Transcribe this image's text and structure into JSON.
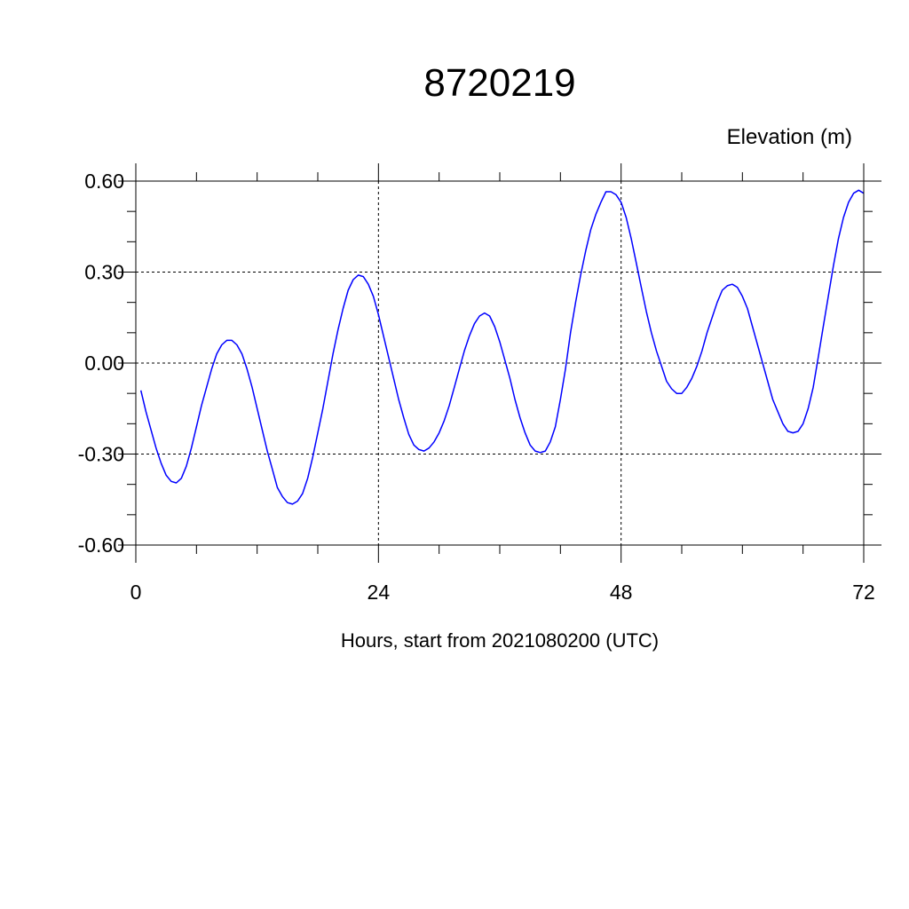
{
  "chart_data": {
    "type": "line",
    "title": "8720219",
    "ylabel": "Elevation (m)",
    "xlabel": "Hours, start from 2021080200 (UTC)",
    "xlim": [
      0,
      72
    ],
    "ylim": [
      -0.6,
      0.6
    ],
    "xticks": [
      0,
      24,
      48,
      72
    ],
    "xtick_labels": [
      "0",
      "24",
      "48",
      "72"
    ],
    "yticks": [
      0.6,
      0.3,
      0.0,
      -0.3,
      -0.6
    ],
    "ytick_labels": [
      "0.60",
      "0.30",
      "0.00",
      "-0.30",
      "-0.60"
    ],
    "grid": true,
    "line_color": "#0000ff",
    "series": [
      {
        "x": [
          0.5,
          1,
          1.5,
          2,
          2.5,
          3,
          3.5,
          4,
          4.5,
          5,
          5.5,
          6,
          6.5,
          7,
          7.5,
          8,
          8.5,
          9,
          9.5,
          10,
          10.5,
          11,
          11.5,
          12,
          12.5,
          13,
          13.5,
          14,
          14.5,
          15,
          15.5,
          16,
          16.5,
          17,
          17.5,
          18,
          18.5,
          19,
          19.5,
          20,
          20.5,
          21,
          21.5,
          22,
          22.5,
          23,
          23.5,
          24,
          24.5,
          25,
          25.5,
          26,
          26.5,
          27,
          27.5,
          28,
          28.5,
          29,
          29.5,
          30,
          30.5,
          31,
          31.5,
          32,
          32.5,
          33,
          33.5,
          34,
          34.5,
          35,
          35.5,
          36,
          36.5,
          37,
          37.5,
          38,
          38.5,
          39,
          39.5,
          40,
          40.5,
          41,
          41.5,
          42,
          42.5,
          43,
          43.5,
          44,
          44.5,
          45,
          45.5,
          46,
          46.5,
          47,
          47.5,
          48,
          48.5,
          49,
          49.5,
          50,
          50.5,
          51,
          51.5,
          52,
          52.5,
          53,
          53.5,
          54,
          54.5,
          55,
          55.5,
          56,
          56.5,
          57,
          57.5,
          58,
          58.5,
          59,
          59.5,
          60,
          60.5,
          61,
          61.5,
          62,
          62.5,
          63,
          63.5,
          64,
          64.5,
          65,
          65.5,
          66,
          66.5,
          67,
          67.5,
          68,
          68.5,
          69,
          69.5,
          70,
          70.5,
          71,
          71.5,
          72
        ],
        "y": [
          -0.09,
          -0.16,
          -0.22,
          -0.28,
          -0.33,
          -0.37,
          -0.39,
          -0.395,
          -0.38,
          -0.34,
          -0.28,
          -0.21,
          -0.14,
          -0.08,
          -0.02,
          0.03,
          0.06,
          0.075,
          0.075,
          0.06,
          0.03,
          -0.02,
          -0.08,
          -0.15,
          -0.22,
          -0.29,
          -0.35,
          -0.41,
          -0.44,
          -0.46,
          -0.465,
          -0.455,
          -0.43,
          -0.38,
          -0.31,
          -0.23,
          -0.15,
          -0.06,
          0.03,
          0.11,
          0.18,
          0.24,
          0.275,
          0.29,
          0.285,
          0.26,
          0.22,
          0.16,
          0.09,
          0.02,
          -0.05,
          -0.12,
          -0.18,
          -0.235,
          -0.27,
          -0.285,
          -0.29,
          -0.28,
          -0.26,
          -0.23,
          -0.19,
          -0.14,
          -0.08,
          -0.02,
          0.04,
          0.09,
          0.13,
          0.155,
          0.165,
          0.155,
          0.12,
          0.07,
          0.01,
          -0.05,
          -0.12,
          -0.18,
          -0.23,
          -0.27,
          -0.29,
          -0.295,
          -0.29,
          -0.26,
          -0.21,
          -0.12,
          -0.02,
          0.1,
          0.2,
          0.29,
          0.37,
          0.44,
          0.49,
          0.53,
          0.565,
          0.565,
          0.555,
          0.53,
          0.48,
          0.41,
          0.33,
          0.25,
          0.17,
          0.1,
          0.04,
          -0.01,
          -0.06,
          -0.085,
          -0.1,
          -0.1,
          -0.08,
          -0.05,
          -0.01,
          0.04,
          0.1,
          0.15,
          0.2,
          0.24,
          0.255,
          0.26,
          0.25,
          0.22,
          0.18,
          0.12,
          0.06,
          0.0,
          -0.06,
          -0.12,
          -0.16,
          -0.2,
          -0.225,
          -0.23,
          -0.225,
          -0.2,
          -0.15,
          -0.08,
          0.02,
          0.12,
          0.22,
          0.32,
          0.41,
          0.48,
          0.53,
          0.56,
          0.57,
          0.56
        ]
      }
    ]
  }
}
